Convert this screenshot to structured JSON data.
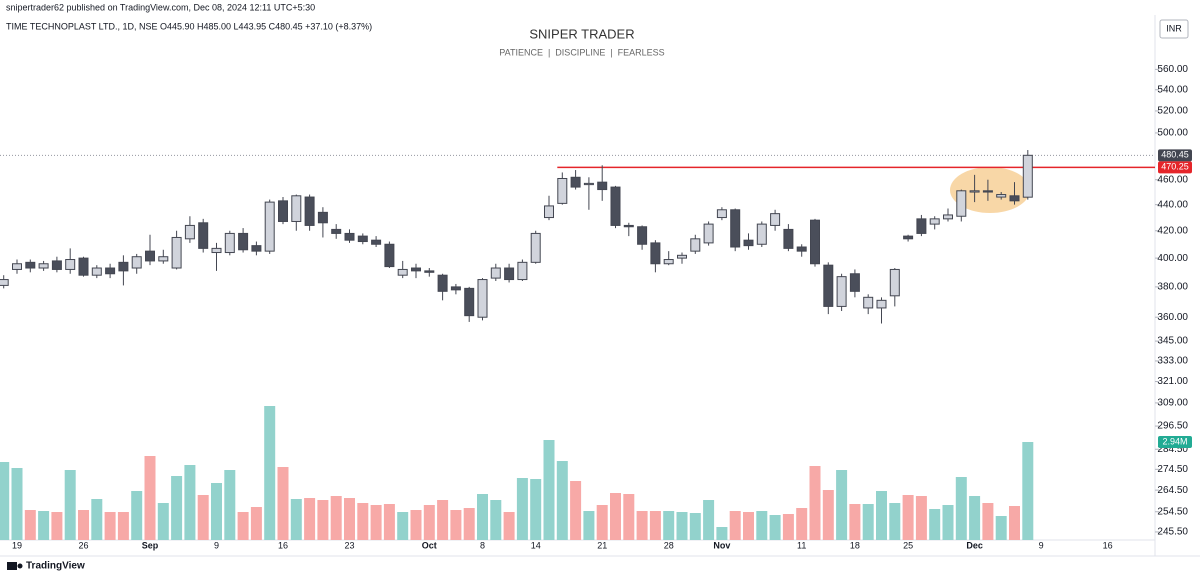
{
  "header": {
    "byline": "snipertrader62 published on TradingView.com, Dec 08, 2024 12:11 UTC+5:30",
    "symbol": "TIME TECHNOPLAST LTD., 1D, NSE",
    "ohlc_text": "O445.90 H485.00 L443.95 C480.45 +37.10 (+8.37%)",
    "currency": "INR",
    "brand": "TradingView"
  },
  "chart_data": {
    "type": "candlestick",
    "title": "SNIPER TRADER",
    "subtitle": "PATIENCE  |  DISCIPLINE  |  FEARLESS",
    "categories": [
      null,
      "19",
      null,
      null,
      null,
      null,
      "26",
      null,
      null,
      null,
      null,
      "Sep",
      null,
      null,
      null,
      null,
      "9",
      null,
      null,
      null,
      null,
      "16",
      null,
      null,
      null,
      null,
      "23",
      null,
      null,
      null,
      null,
      null,
      "Oct",
      null,
      null,
      null,
      "8",
      null,
      null,
      null,
      "14",
      null,
      null,
      null,
      null,
      "21",
      null,
      null,
      null,
      null,
      "28",
      null,
      null,
      null,
      "Nov",
      null,
      null,
      null,
      null,
      null,
      "11",
      null,
      null,
      null,
      "18",
      null,
      null,
      null,
      "25",
      null,
      null,
      null,
      null,
      "Dec",
      null,
      null,
      null,
      null,
      "9",
      null,
      null,
      null,
      null,
      "16"
    ],
    "open": [
      381,
      392,
      397,
      393,
      398,
      392,
      400,
      388,
      393,
      397,
      393,
      405,
      398,
      393,
      414,
      426,
      404,
      404,
      418,
      409,
      405,
      443,
      427,
      446,
      434,
      421,
      418,
      416,
      413,
      410,
      388,
      393,
      391,
      388,
      380,
      379,
      360,
      386,
      393,
      385,
      397,
      430,
      441,
      462,
      456,
      458,
      454,
      424,
      423,
      411,
      396,
      400,
      405,
      411,
      430,
      436,
      413,
      410,
      424,
      421,
      408,
      428,
      395,
      367,
      389,
      366,
      366,
      374,
      416,
      429,
      425,
      429,
      431,
      450,
      451,
      446,
      447,
      445.9,
      null,
      null,
      null,
      null,
      null,
      null
    ],
    "high": [
      388,
      399,
      399,
      398,
      401,
      407,
      401,
      395,
      396,
      402,
      403,
      417,
      406,
      420,
      431,
      429,
      411,
      420,
      422,
      412,
      444,
      446,
      448,
      448,
      438,
      425,
      421,
      418,
      416,
      412,
      398,
      396,
      393,
      389,
      382,
      380,
      386,
      396,
      396,
      399,
      420,
      447,
      466,
      468,
      462,
      472,
      455,
      426,
      424,
      413,
      405,
      404,
      417,
      427,
      438,
      437,
      418,
      427,
      436,
      425,
      410,
      429,
      397,
      389,
      392,
      375,
      373,
      393,
      417,
      432,
      431,
      437,
      452,
      464,
      460,
      450,
      458,
      485,
      null,
      null,
      null,
      null,
      null,
      null
    ],
    "low": [
      379,
      389,
      390,
      391,
      390,
      389,
      387,
      386,
      386,
      381,
      389,
      395,
      396,
      392,
      411,
      404,
      391,
      402,
      404,
      402,
      403,
      425,
      420,
      420,
      415,
      414,
      411,
      410,
      408,
      393,
      386,
      386,
      387,
      371,
      375,
      357,
      358,
      384,
      383,
      384,
      396,
      428,
      440,
      452,
      436,
      443,
      422,
      416,
      406,
      390,
      395,
      396,
      403,
      409,
      428,
      405,
      406,
      408,
      420,
      405,
      401,
      394,
      362,
      364,
      373,
      362,
      356,
      367,
      412,
      416,
      421,
      427,
      427,
      442,
      443,
      444,
      440,
      443.95,
      null,
      null,
      null,
      null,
      null,
      null
    ],
    "close": [
      385,
      396,
      393,
      396,
      392,
      399,
      388,
      393,
      389,
      391,
      401,
      398,
      401,
      415,
      424,
      407,
      407,
      418,
      406,
      405,
      442,
      427,
      447,
      424,
      426,
      418,
      413,
      412,
      410,
      394,
      392,
      391,
      390,
      377,
      378,
      361,
      385,
      393,
      385,
      397,
      418,
      439,
      461,
      454,
      457,
      452,
      424,
      423,
      410,
      396,
      399,
      402,
      414,
      425,
      436,
      408,
      409,
      425,
      433,
      407,
      405,
      396,
      367,
      387,
      377,
      373,
      371,
      392,
      414,
      418,
      429,
      432,
      451,
      451,
      450,
      448,
      443,
      480.45,
      null,
      null,
      null,
      null,
      null,
      null
    ],
    "volume": [
      2340000,
      2160000,
      900000,
      870000,
      840000,
      2100000,
      900000,
      1230000,
      840000,
      840000,
      1470000,
      2520000,
      1110000,
      1920000,
      2250000,
      1350000,
      1710000,
      2100000,
      840000,
      990000,
      4020000,
      2190000,
      1230000,
      1260000,
      1200000,
      1320000,
      1260000,
      1110000,
      1050000,
      1080000,
      840000,
      900000,
      1050000,
      1200000,
      900000,
      960000,
      1380000,
      1200000,
      840000,
      1860000,
      1830000,
      3000000,
      2370000,
      1770000,
      870000,
      1050000,
      1410000,
      1380000,
      870000,
      870000,
      870000,
      840000,
      810000,
      1200000,
      390000,
      870000,
      840000,
      870000,
      750000,
      780000,
      960000,
      2220000,
      1500000,
      2100000,
      1080000,
      1080000,
      1470000,
      1110000,
      1350000,
      1320000,
      930000,
      1050000,
      1890000,
      1320000,
      1110000,
      720000,
      1020000,
      2940000,
      null,
      null,
      null,
      null,
      null,
      null
    ],
    "volume_labels": [
      null,
      null,
      null,
      null,
      null,
      null,
      null,
      null,
      null,
      null,
      null,
      null,
      null,
      null,
      null,
      null,
      null,
      null,
      null,
      null,
      null,
      null,
      null,
      null,
      null,
      null,
      null,
      null,
      null,
      null,
      null,
      null,
      null,
      null,
      null,
      null,
      null,
      null,
      null,
      null,
      null,
      null,
      null,
      null,
      null,
      null,
      null,
      null,
      null,
      null,
      null,
      null,
      null,
      null,
      null,
      null,
      null,
      null,
      null,
      null,
      null,
      null,
      null,
      null,
      null,
      null,
      null,
      null,
      null,
      null,
      null,
      null,
      null,
      null,
      null,
      null,
      null,
      "2.94M",
      null,
      null,
      null,
      null,
      null,
      null
    ],
    "vlim": [
      0,
      4500000
    ],
    "ylim": [
      242,
      617
    ],
    "log_scale": true,
    "yticks": [
      {
        "value": 560,
        "label": "560.00"
      },
      {
        "value": 540,
        "label": "540.00"
      },
      {
        "value": 520,
        "label": "520.00"
      },
      {
        "value": 500,
        "label": "500.00"
      },
      {
        "value": 460,
        "label": "460.00"
      },
      {
        "value": 440,
        "label": "440.00"
      },
      {
        "value": 420,
        "label": "420.00"
      },
      {
        "value": 400,
        "label": "400.00"
      },
      {
        "value": 380,
        "label": "380.00"
      },
      {
        "value": 360,
        "label": "360.00"
      },
      {
        "value": 345,
        "label": "345.00"
      },
      {
        "value": 333,
        "label": "333.00"
      },
      {
        "value": 321,
        "label": "321.00"
      },
      {
        "value": 309,
        "label": "309.00"
      },
      {
        "value": 296.5,
        "label": "296.50"
      },
      {
        "value": 284.5,
        "label": "284.50"
      },
      {
        "value": 274.5,
        "label": "274.50"
      },
      {
        "value": 264.5,
        "label": "264.50"
      },
      {
        "value": 254.5,
        "label": "254.50"
      },
      {
        "value": 245.5,
        "label": "245.50"
      }
    ],
    "hline": {
      "value": 470.25,
      "color": "#e5252a",
      "from": 42
    },
    "up_color": "#d1d4dc",
    "down_color": "#4a4e5a",
    "wick_color": "#434651",
    "volume_up_color": "#92d2cc",
    "volume_down_color": "#f7a9a7",
    "highlight_color": "#f5c98a"
  }
}
